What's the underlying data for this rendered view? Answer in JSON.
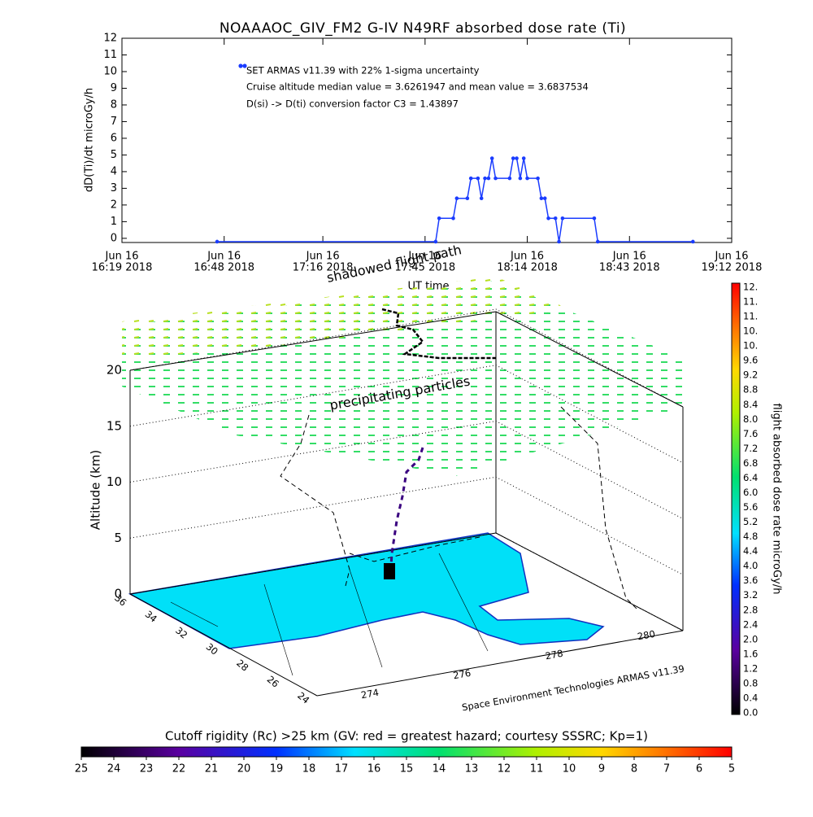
{
  "chart_data": {
    "type": "line",
    "title": "NOAAAOC_GIV_FM2 G-IV    N49RF  absorbed dose rate (Ti)",
    "xlabel": "UT time",
    "ylabel": "dD(Ti)/dt microGy/h",
    "annotations": [
      "Cruise altitude median value = 3.6261947 and mean value = 3.6837534",
      "D(si) -> D(ti) conversion factor C3 = 1.43897"
    ],
    "x": [
      "2018-06-16 16:46",
      "2018-06-16 17:48",
      "2018-06-16 17:49",
      "2018-06-16 17:53",
      "2018-06-16 17:54",
      "2018-06-16 17:57",
      "2018-06-16 17:58",
      "2018-06-16 18:00",
      "2018-06-16 18:01",
      "2018-06-16 18:02",
      "2018-06-16 18:03",
      "2018-06-16 18:04",
      "2018-06-16 18:05",
      "2018-06-16 18:09",
      "2018-06-16 18:10",
      "2018-06-16 18:11",
      "2018-06-16 18:12",
      "2018-06-16 18:13",
      "2018-06-16 18:14",
      "2018-06-16 18:17",
      "2018-06-16 18:18",
      "2018-06-16 18:19",
      "2018-06-16 18:20",
      "2018-06-16 18:22",
      "2018-06-16 18:23",
      "2018-06-16 18:24",
      "2018-06-16 18:33",
      "2018-06-16 18:34",
      "2018-06-16 19:01"
    ],
    "series": [
      {
        "name": "SET ARMAS v11.39 with 22% 1-sigma uncertainty",
        "color": "#1a3cff",
        "values": [
          -0.2,
          -0.2,
          1.2,
          1.2,
          2.4,
          2.4,
          3.6,
          3.6,
          2.4,
          3.6,
          3.6,
          4.8,
          3.6,
          3.6,
          4.8,
          4.8,
          3.6,
          4.8,
          3.6,
          3.6,
          2.4,
          2.4,
          1.2,
          1.2,
          -0.2,
          1.2,
          1.2,
          -0.2,
          -0.2
        ]
      }
    ],
    "xlim": [
      "2018-06-16 16:19",
      "2018-06-16 19:12"
    ],
    "xticks": [
      {
        "value": "2018-06-16 16:19",
        "label": [
          "Jun 16",
          "16:19 2018"
        ]
      },
      {
        "value": "2018-06-16 16:48",
        "label": [
          "Jun 16",
          "16:48 2018"
        ]
      },
      {
        "value": "2018-06-16 17:16",
        "label": [
          "Jun 16",
          "17:16 2018"
        ]
      },
      {
        "value": "2018-06-16 17:45",
        "label": [
          "Jun 16",
          "17:45 2018"
        ]
      },
      {
        "value": "2018-06-16 18:14",
        "label": [
          "Jun 16",
          "18:14 2018"
        ]
      },
      {
        "value": "2018-06-16 18:43",
        "label": [
          "Jun 16",
          "18:43 2018"
        ]
      },
      {
        "value": "2018-06-16 19:12",
        "label": [
          "Jun 16",
          "19:12 2018"
        ]
      }
    ],
    "ylim": [
      -0.25,
      12
    ],
    "yticks": [
      0,
      1,
      2,
      3,
      4,
      5,
      6,
      7,
      8,
      9,
      10,
      11,
      12
    ]
  },
  "scene": {
    "altitude_label": "Altitude (km)",
    "zlim": [
      0,
      20
    ],
    "altitude_ticks": [
      0,
      5,
      10,
      15,
      20
    ],
    "latitude_ticks": [
      36,
      34,
      32,
      30,
      28,
      26,
      24
    ],
    "longitude_ticks": [
      274,
      276,
      278,
      280
    ],
    "annotations": [
      "shadowed flight path",
      "precipitating particles",
      "Space Environment Technologies ARMAS v11.39"
    ]
  },
  "dose_colorbar": {
    "label": "flight absorbed dose rate microGy/h",
    "ticks": [
      {
        "value": 0,
        "label": "0.0"
      },
      0.4,
      0.8,
      1.2,
      1.6,
      {
        "value": 2,
        "label": "2.0"
      },
      2.4,
      2.8,
      3.2,
      3.6,
      {
        "value": 4,
        "label": "4.0"
      },
      4.4,
      4.8,
      5.2,
      5.6,
      {
        "value": 6,
        "label": "6.0"
      },
      6.4,
      6.8,
      7.2,
      7.6,
      {
        "value": 8,
        "label": "8.0"
      },
      8.4,
      8.8,
      9.2,
      9.6,
      {
        "value": 10,
        "label": "10."
      },
      {
        "value": 10.4,
        "label": "10."
      },
      {
        "value": 10.8,
        "label": "11."
      },
      {
        "value": 11.2,
        "label": "11."
      },
      {
        "value": 12,
        "label": "12."
      }
    ]
  },
  "rigidity_colorbar": {
    "title": "Cutoff rigidity (Rc) >25 km (GV: red = greatest hazard; courtesy SSSRC; Kp=1)",
    "ticks": [
      25,
      24,
      23,
      22,
      21,
      20,
      19,
      18,
      17,
      16,
      15,
      14,
      13,
      12,
      11,
      10,
      9,
      8,
      7,
      6,
      5
    ]
  }
}
